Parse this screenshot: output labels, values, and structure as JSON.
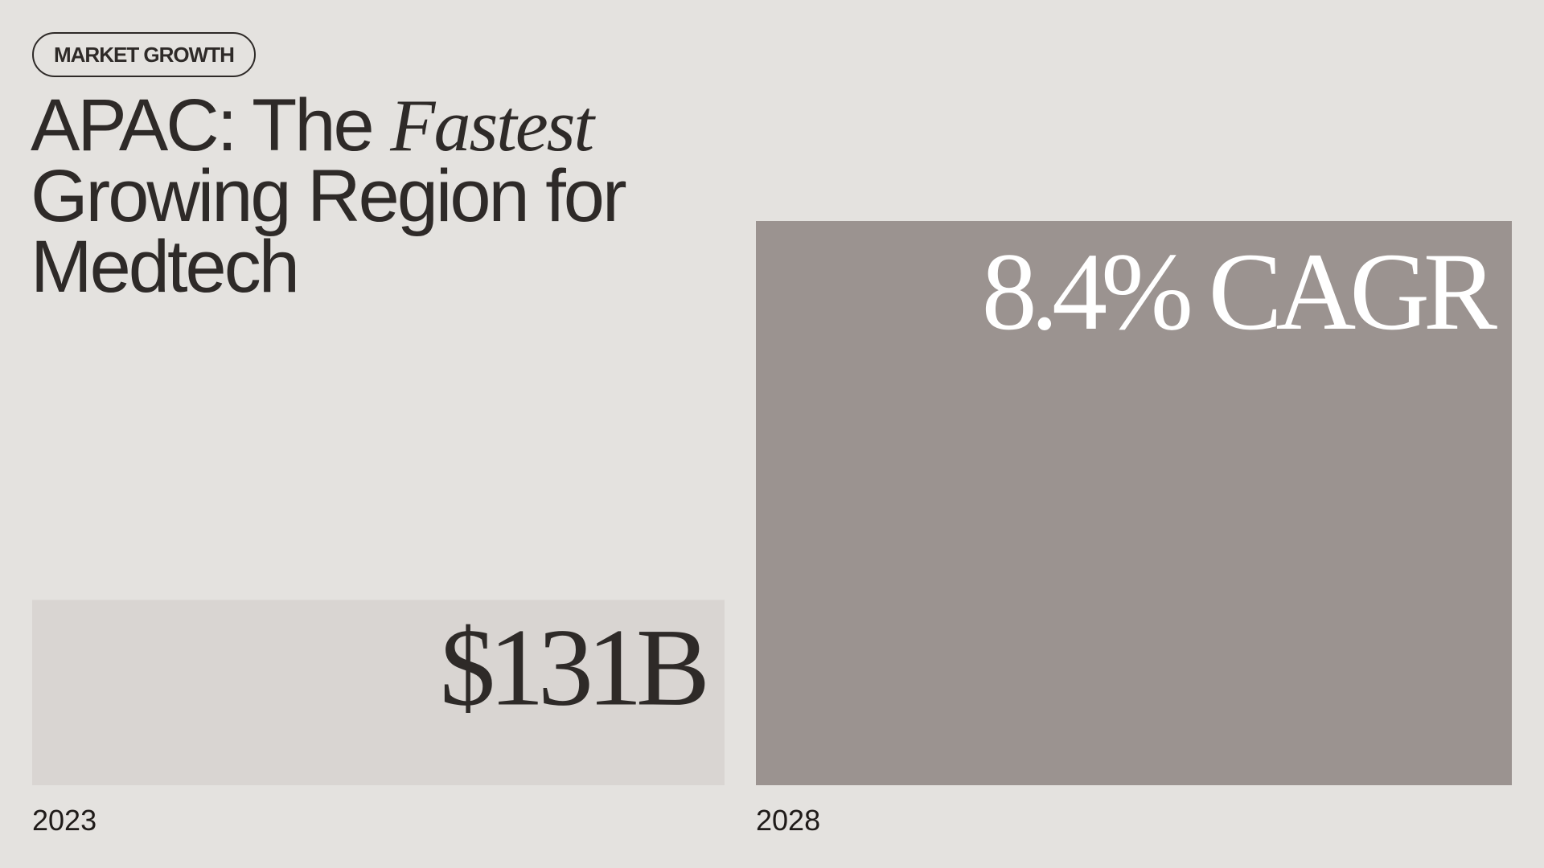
{
  "tag": "MARKET GROWTH",
  "chart_data": {
    "type": "bar",
    "title": [
      "APAC: The",
      "Fastest",
      "Growing Region for Medtech"
    ],
    "categories": [
      "2023",
      "2028"
    ],
    "values": [
      131,
      399
    ],
    "value_labels": [
      "$131B",
      null
    ],
    "colors": [
      "#d9d5d2",
      "#9b9390"
    ],
    "annotations": [
      "8.4% CAGR"
    ]
  }
}
